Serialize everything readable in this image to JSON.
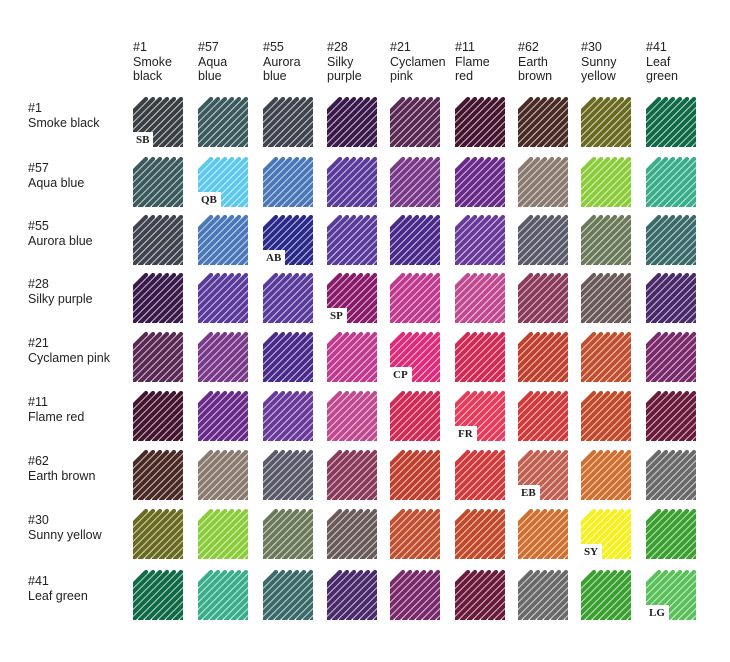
{
  "columns": [
    {
      "label": "#1\nSmoke\nblack"
    },
    {
      "label": "#57\nAqua\nblue"
    },
    {
      "label": "#55\nAurora\nblue"
    },
    {
      "label": "#28\nSilky\npurple"
    },
    {
      "label": "#21\nCyclamen\npink"
    },
    {
      "label": "#11\nFlame\nred"
    },
    {
      "label": "#62\nEarth\nbrown"
    },
    {
      "label": "#30\nSunny\nyellow"
    },
    {
      "label": "#41\nLeaf\ngreen"
    }
  ],
  "rows": [
    {
      "label": "#1\nSmoke black"
    },
    {
      "label": "#57\n Aqua blue"
    },
    {
      "label": "#55\nAurora blue"
    },
    {
      "label": "#28\nSilky purple"
    },
    {
      "label": "#21\nCyclamen pink"
    },
    {
      "label": "#11\nFlame red"
    },
    {
      "label": "#62\nEarth brown"
    },
    {
      "label": "#30\nSunny yellow"
    },
    {
      "label": "#41\nLeaf green"
    }
  ],
  "abbreviations": [
    "SB",
    "QB",
    "AB",
    "SP",
    "CP",
    "FR",
    "EB",
    "SY",
    "LG"
  ],
  "colors": [
    [
      "#3a3f44",
      "#3b5a5e",
      "#40444f",
      "#3a1a4a",
      "#5a2a55",
      "#45142e",
      "#4a2a25",
      "#6a6a20",
      "#0f6a45"
    ],
    [
      "#3b5a5e",
      "#5ec9ef",
      "#4a78b8",
      "#5a3a9a",
      "#7a3a8a",
      "#6a2a8a",
      "#8a7a70",
      "#8acc3a",
      "#3aae8a"
    ],
    [
      "#40444f",
      "#4a78b8",
      "#2a2a8a",
      "#5a3a9a",
      "#4a2a8a",
      "#6a3a9a",
      "#5a5a6a",
      "#6a7a5a",
      "#3a6a6a"
    ],
    [
      "#3a1a4a",
      "#5a3a9a",
      "#5a3a9a",
      "#8a1a6a",
      "#c03a90",
      "#c04a90",
      "#8a3a5a",
      "#6a5a5a",
      "#4a2a6a"
    ],
    [
      "#5a2a55",
      "#7a3a8a",
      "#4a2a8a",
      "#c03a90",
      "#e02a7a",
      "#d02a55",
      "#c04030",
      "#c05030",
      "#7a2a6a"
    ],
    [
      "#45142e",
      "#6a2a8a",
      "#6a3a9a",
      "#c04a90",
      "#d02a55",
      "#e83a5a",
      "#d03a3a",
      "#c04a2a",
      "#6a1a3a"
    ],
    [
      "#4a2a25",
      "#8a7a70",
      "#5a5a6a",
      "#8a3a5a",
      "#c04030",
      "#d03a3a",
      "#c06050",
      "#d07030",
      "#6a6a6a"
    ],
    [
      "#6a6a20",
      "#8acc3a",
      "#6a7a5a",
      "#6a5a5a",
      "#c05030",
      "#c04a2a",
      "#d07030",
      "#f5f020",
      "#3aa030"
    ],
    [
      "#0f6a45",
      "#3aae8a",
      "#3a6a6a",
      "#4a2a6a",
      "#7a2a6a",
      "#6a1a3a",
      "#6a6a6a",
      "#3aa030",
      "#5ac05a"
    ]
  ]
}
